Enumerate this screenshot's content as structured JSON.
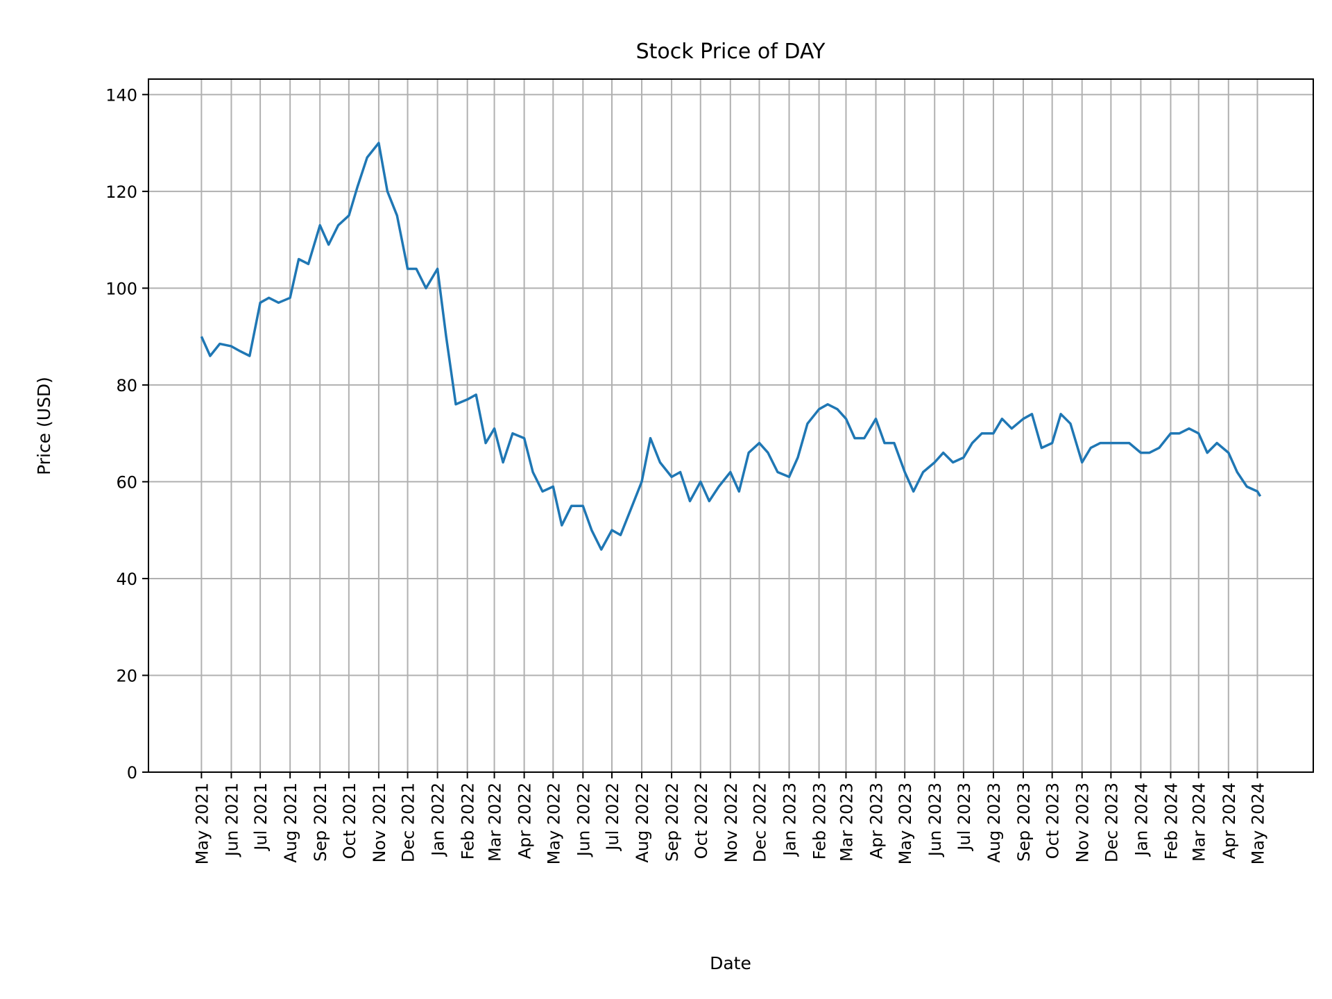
{
  "chart_data": {
    "type": "line",
    "title": "Stock Price of DAY",
    "xlabel": "Date",
    "ylabel": "Price (USD)",
    "ylim": [
      0,
      143.2
    ],
    "xlim": [
      "2021-03-07",
      "2024-06-28"
    ],
    "grid": true,
    "line_color": "#1f77b4",
    "yticks": [
      0,
      20,
      40,
      60,
      80,
      100,
      120,
      140
    ],
    "xticks": [
      {
        "date": "2021-05-01",
        "label": "May 2021"
      },
      {
        "date": "2021-06-01",
        "label": "Jun 2021"
      },
      {
        "date": "2021-07-01",
        "label": "Jul 2021"
      },
      {
        "date": "2021-08-01",
        "label": "Aug 2021"
      },
      {
        "date": "2021-09-01",
        "label": "Sep 2021"
      },
      {
        "date": "2021-10-01",
        "label": "Oct 2021"
      },
      {
        "date": "2021-11-01",
        "label": "Nov 2021"
      },
      {
        "date": "2021-12-01",
        "label": "Dec 2021"
      },
      {
        "date": "2022-01-01",
        "label": "Jan 2022"
      },
      {
        "date": "2022-02-01",
        "label": "Feb 2022"
      },
      {
        "date": "2022-03-01",
        "label": "Mar 2022"
      },
      {
        "date": "2022-04-01",
        "label": "Apr 2022"
      },
      {
        "date": "2022-05-01",
        "label": "May 2022"
      },
      {
        "date": "2022-06-01",
        "label": "Jun 2022"
      },
      {
        "date": "2022-07-01",
        "label": "Jul 2022"
      },
      {
        "date": "2022-08-01",
        "label": "Aug 2022"
      },
      {
        "date": "2022-09-01",
        "label": "Sep 2022"
      },
      {
        "date": "2022-10-01",
        "label": "Oct 2022"
      },
      {
        "date": "2022-11-01",
        "label": "Nov 2022"
      },
      {
        "date": "2022-12-01",
        "label": "Dec 2022"
      },
      {
        "date": "2023-01-01",
        "label": "Jan 2023"
      },
      {
        "date": "2023-02-01",
        "label": "Feb 2023"
      },
      {
        "date": "2023-03-01",
        "label": "Mar 2023"
      },
      {
        "date": "2023-04-01",
        "label": "Apr 2023"
      },
      {
        "date": "2023-05-01",
        "label": "May 2023"
      },
      {
        "date": "2023-06-01",
        "label": "Jun 2023"
      },
      {
        "date": "2023-07-01",
        "label": "Jul 2023"
      },
      {
        "date": "2023-08-01",
        "label": "Aug 2023"
      },
      {
        "date": "2023-09-01",
        "label": "Sep 2023"
      },
      {
        "date": "2023-10-01",
        "label": "Oct 2023"
      },
      {
        "date": "2023-11-01",
        "label": "Nov 2023"
      },
      {
        "date": "2023-12-01",
        "label": "Dec 2023"
      },
      {
        "date": "2024-01-01",
        "label": "Jan 2024"
      },
      {
        "date": "2024-02-01",
        "label": "Feb 2024"
      },
      {
        "date": "2024-03-01",
        "label": "Mar 2024"
      },
      {
        "date": "2024-04-01",
        "label": "Apr 2024"
      },
      {
        "date": "2024-05-01",
        "label": "May 2024"
      }
    ],
    "series": [
      {
        "x": [
          "2021-05-01",
          "2021-05-10",
          "2021-05-20",
          "2021-06-01",
          "2021-06-10",
          "2021-06-20",
          "2021-07-01",
          "2021-07-10",
          "2021-07-20",
          "2021-08-01",
          "2021-08-10",
          "2021-08-20",
          "2021-09-01",
          "2021-09-10",
          "2021-09-20",
          "2021-10-01",
          "2021-10-10",
          "2021-10-20",
          "2021-11-01",
          "2021-11-10",
          "2021-11-20",
          "2021-12-01",
          "2021-12-10",
          "2021-12-20",
          "2022-01-01",
          "2022-01-10",
          "2022-01-20",
          "2022-02-01",
          "2022-02-10",
          "2022-02-20",
          "2022-03-01",
          "2022-03-10",
          "2022-03-20",
          "2022-04-01",
          "2022-04-10",
          "2022-04-20",
          "2022-05-01",
          "2022-05-10",
          "2022-05-20",
          "2022-06-01",
          "2022-06-10",
          "2022-06-20",
          "2022-07-01",
          "2022-07-10",
          "2022-07-20",
          "2022-08-01",
          "2022-08-10",
          "2022-08-20",
          "2022-09-01",
          "2022-09-10",
          "2022-09-20",
          "2022-10-01",
          "2022-10-10",
          "2022-10-20",
          "2022-11-01",
          "2022-11-10",
          "2022-11-20",
          "2022-12-01",
          "2022-12-10",
          "2022-12-20",
          "2023-01-01",
          "2023-01-10",
          "2023-01-20",
          "2023-02-01",
          "2023-02-10",
          "2023-02-20",
          "2023-03-01",
          "2023-03-10",
          "2023-03-20",
          "2023-04-01",
          "2023-04-10",
          "2023-04-20",
          "2023-05-01",
          "2023-05-10",
          "2023-05-20",
          "2023-06-01",
          "2023-06-10",
          "2023-06-20",
          "2023-07-01",
          "2023-07-10",
          "2023-07-20",
          "2023-08-01",
          "2023-08-10",
          "2023-08-20",
          "2023-09-01",
          "2023-09-10",
          "2023-09-20",
          "2023-10-01",
          "2023-10-10",
          "2023-10-20",
          "2023-11-01",
          "2023-11-10",
          "2023-11-20",
          "2023-12-01",
          "2023-12-10",
          "2023-12-20",
          "2024-01-01",
          "2024-01-10",
          "2024-01-20",
          "2024-02-01",
          "2024-02-10",
          "2024-02-20",
          "2024-03-01",
          "2024-03-10",
          "2024-03-20",
          "2024-04-01",
          "2024-04-10",
          "2024-04-20",
          "2024-05-01",
          "2024-05-04"
        ],
        "y": [
          90,
          86,
          88.5,
          88,
          87,
          86,
          97,
          98,
          97,
          98,
          106,
          105,
          113,
          109,
          113,
          115,
          121,
          127,
          130,
          120,
          115,
          104,
          104,
          100,
          104,
          90,
          76,
          77,
          78,
          68,
          71,
          64,
          70,
          69,
          62,
          58,
          59,
          51,
          55,
          55,
          50,
          46,
          50,
          49,
          54,
          60,
          69,
          64,
          61,
          62,
          56,
          60,
          56,
          59,
          62,
          58,
          66,
          68,
          66,
          62,
          61,
          65,
          72,
          75,
          76,
          75,
          73,
          69,
          69,
          73,
          68,
          68,
          62,
          58,
          62,
          64,
          66,
          64,
          65,
          68,
          70,
          70,
          73,
          71,
          73,
          74,
          67,
          68,
          74,
          72,
          64,
          67,
          68,
          68,
          68,
          68,
          66,
          66,
          67,
          70,
          70,
          71,
          70,
          66,
          68,
          66,
          62,
          59,
          58,
          57
        ]
      }
    ]
  }
}
